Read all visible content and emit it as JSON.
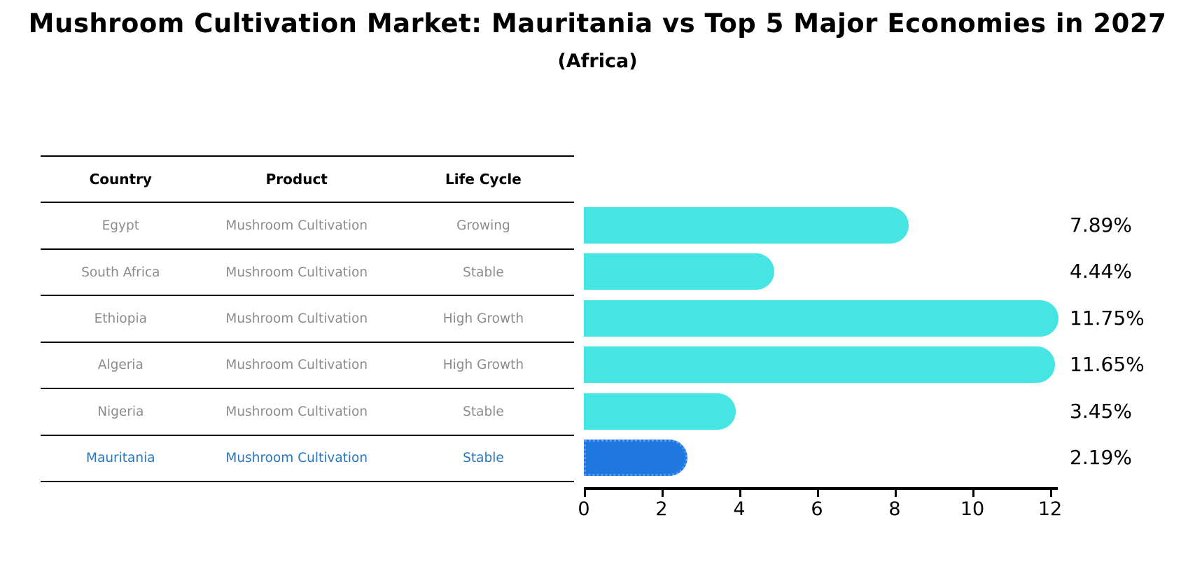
{
  "title": "Mushroom Cultivation Market: Mauritania vs Top 5 Major Economies in 2027",
  "subtitle": "(Africa)",
  "table": {
    "headers": [
      "Country",
      "Product",
      "Life Cycle"
    ],
    "rows": [
      {
        "country": "Egypt",
        "product": "Mushroom Cultivation",
        "life_cycle": "Growing",
        "highlight": false
      },
      {
        "country": "South Africa",
        "product": "Mushroom Cultivation",
        "life_cycle": "Stable",
        "highlight": false
      },
      {
        "country": "Ethiopia",
        "product": "Mushroom Cultivation",
        "life_cycle": "High Growth",
        "highlight": false
      },
      {
        "country": "Algeria",
        "product": "Mushroom Cultivation",
        "life_cycle": "High Growth",
        "highlight": false
      },
      {
        "country": "Nigeria",
        "product": "Mushroom Cultivation",
        "life_cycle": "Stable",
        "highlight": false
      },
      {
        "country": "Mauritania",
        "product": "Mushroom Cultivation",
        "life_cycle": "Stable",
        "highlight": true
      }
    ]
  },
  "chart_data": {
    "type": "bar",
    "orientation": "horizontal",
    "title": "Mushroom Cultivation Market: Mauritania vs Top 5 Major Economies in 2027 (Africa)",
    "categories": [
      "Egypt",
      "South Africa",
      "Ethiopia",
      "Algeria",
      "Nigeria",
      "Mauritania"
    ],
    "values": [
      7.89,
      4.44,
      11.75,
      11.65,
      3.45,
      2.19
    ],
    "labels": [
      "7.89%",
      "4.44%",
      "11.75%",
      "11.65%",
      "3.45%",
      "2.19%"
    ],
    "xlabel": "",
    "ylabel": "",
    "xlim": [
      0,
      12.2
    ],
    "xticks": [
      0,
      2,
      4,
      6,
      8,
      10,
      12
    ],
    "grid": false,
    "legend": "none",
    "bar_color": "#46e5e4",
    "highlight_color": "#1f77e0",
    "highlight_index": 5
  },
  "colors": {
    "background": "#ffffff",
    "table_line": "#000000",
    "body_text": "#8c8c8c",
    "header_text": "#000000",
    "highlight_text": "#2878c0",
    "axis": "#000000"
  }
}
